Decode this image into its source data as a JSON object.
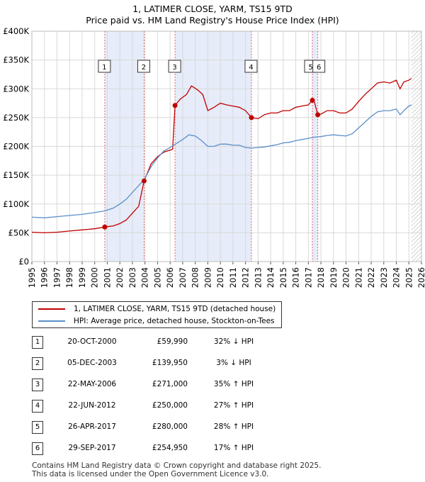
{
  "chart_data": {
    "type": "line",
    "title": "1, LATIMER CLOSE, YARM, TS15 9TD",
    "subtitle": "Price paid vs. HM Land Registry's House Price Index (HPI)",
    "xlim": [
      1995,
      2026
    ],
    "ylim": [
      0,
      400000
    ],
    "y_ticks": [
      {
        "value": 0,
        "label": "£0"
      },
      {
        "value": 50000,
        "label": "£50K"
      },
      {
        "value": 100000,
        "label": "£100K"
      },
      {
        "value": 150000,
        "label": "£150K"
      },
      {
        "value": 200000,
        "label": "£200K"
      },
      {
        "value": 250000,
        "label": "£250K"
      },
      {
        "value": 300000,
        "label": "£300K"
      },
      {
        "value": 350000,
        "label": "£350K"
      },
      {
        "value": 400000,
        "label": "£400K"
      }
    ],
    "x_ticks": [
      "1995",
      "1996",
      "1997",
      "1998",
      "1999",
      "2000",
      "2001",
      "2002",
      "2003",
      "2004",
      "2005",
      "2006",
      "2007",
      "2008",
      "2009",
      "2010",
      "2011",
      "2012",
      "2013",
      "2014",
      "2015",
      "2016",
      "2017",
      "2018",
      "2019",
      "2020",
      "2021",
      "2022",
      "2023",
      "2024",
      "2025",
      "2026"
    ],
    "data_end": 2025.2,
    "shaded_ranges": [
      [
        2000.8,
        2003.93
      ],
      [
        2006.39,
        2012.47
      ],
      [
        2017.32,
        2017.75
      ]
    ],
    "series": [
      {
        "name": "1, LATIMER CLOSE, YARM, TS15 9TD (detached house)",
        "color": "#c00000",
        "points": [
          [
            1995,
            51000
          ],
          [
            1996,
            50000
          ],
          [
            1997,
            51000
          ],
          [
            1998,
            53000
          ],
          [
            1999,
            55000
          ],
          [
            2000,
            57000
          ],
          [
            2000.8,
            59990
          ],
          [
            2001.5,
            62000
          ],
          [
            2002,
            66000
          ],
          [
            2002.5,
            72000
          ],
          [
            2003,
            84000
          ],
          [
            2003.5,
            96000
          ],
          [
            2003.93,
            139950
          ],
          [
            2004.5,
            170000
          ],
          [
            2005,
            182000
          ],
          [
            2005.5,
            190000
          ],
          [
            2006.2,
            195000
          ],
          [
            2006.39,
            271000
          ],
          [
            2006.8,
            282000
          ],
          [
            2007.3,
            290000
          ],
          [
            2007.7,
            305000
          ],
          [
            2008.2,
            298000
          ],
          [
            2008.6,
            290000
          ],
          [
            2009,
            262000
          ],
          [
            2009.5,
            268000
          ],
          [
            2010,
            275000
          ],
          [
            2010.5,
            272000
          ],
          [
            2011,
            270000
          ],
          [
            2011.5,
            268000
          ],
          [
            2012,
            262000
          ],
          [
            2012.47,
            250000
          ],
          [
            2013,
            248000
          ],
          [
            2013.5,
            255000
          ],
          [
            2014,
            258000
          ],
          [
            2014.5,
            258000
          ],
          [
            2015,
            262000
          ],
          [
            2015.5,
            262000
          ],
          [
            2016,
            268000
          ],
          [
            2016.5,
            270000
          ],
          [
            2017,
            272000
          ],
          [
            2017.32,
            280000
          ],
          [
            2017.5,
            276000
          ],
          [
            2017.75,
            254950
          ],
          [
            2018,
            256000
          ],
          [
            2018.5,
            262000
          ],
          [
            2019,
            262000
          ],
          [
            2019.5,
            258000
          ],
          [
            2020,
            258000
          ],
          [
            2020.5,
            265000
          ],
          [
            2021,
            278000
          ],
          [
            2021.5,
            290000
          ],
          [
            2022,
            300000
          ],
          [
            2022.5,
            310000
          ],
          [
            2023,
            312000
          ],
          [
            2023.5,
            310000
          ],
          [
            2024,
            315000
          ],
          [
            2024.3,
            300000
          ],
          [
            2024.6,
            312000
          ],
          [
            2025,
            315000
          ],
          [
            2025.2,
            318000
          ]
        ]
      },
      {
        "name": "HPI: Average price, detached house, Stockton-on-Tees",
        "color": "#5b8fc9",
        "points": [
          [
            1995,
            77000
          ],
          [
            1996,
            76000
          ],
          [
            1997,
            78000
          ],
          [
            1998,
            80000
          ],
          [
            1999,
            82000
          ],
          [
            2000,
            85000
          ],
          [
            2000.8,
            88000
          ],
          [
            2001.5,
            93000
          ],
          [
            2002,
            100000
          ],
          [
            2002.5,
            108000
          ],
          [
            2003,
            120000
          ],
          [
            2003.5,
            132000
          ],
          [
            2003.93,
            142000
          ],
          [
            2004.5,
            165000
          ],
          [
            2005,
            180000
          ],
          [
            2005.5,
            192000
          ],
          [
            2006,
            198000
          ],
          [
            2006.5,
            205000
          ],
          [
            2007,
            212000
          ],
          [
            2007.5,
            220000
          ],
          [
            2008,
            218000
          ],
          [
            2008.5,
            210000
          ],
          [
            2009,
            200000
          ],
          [
            2009.5,
            200000
          ],
          [
            2010,
            204000
          ],
          [
            2010.5,
            204000
          ],
          [
            2011,
            202000
          ],
          [
            2011.5,
            202000
          ],
          [
            2012,
            198000
          ],
          [
            2012.5,
            197000
          ],
          [
            2013,
            198000
          ],
          [
            2013.5,
            199000
          ],
          [
            2014,
            201000
          ],
          [
            2014.5,
            203000
          ],
          [
            2015,
            206000
          ],
          [
            2015.5,
            207000
          ],
          [
            2016,
            210000
          ],
          [
            2016.5,
            212000
          ],
          [
            2017,
            214000
          ],
          [
            2017.5,
            216000
          ],
          [
            2018,
            217000
          ],
          [
            2018.5,
            219000
          ],
          [
            2019,
            220000
          ],
          [
            2019.5,
            219000
          ],
          [
            2020,
            218000
          ],
          [
            2020.5,
            222000
          ],
          [
            2021,
            232000
          ],
          [
            2021.5,
            242000
          ],
          [
            2022,
            252000
          ],
          [
            2022.5,
            260000
          ],
          [
            2023,
            262000
          ],
          [
            2023.5,
            262000
          ],
          [
            2024,
            265000
          ],
          [
            2024.3,
            255000
          ],
          [
            2024.6,
            262000
          ],
          [
            2025,
            270000
          ],
          [
            2025.2,
            272000
          ]
        ]
      }
    ],
    "sales": [
      {
        "label": "1",
        "x": 2000.8,
        "y": 59990
      },
      {
        "label": "2",
        "x": 2003.93,
        "y": 139950
      },
      {
        "label": "3",
        "x": 2006.39,
        "y": 271000
      },
      {
        "label": "4",
        "x": 2012.47,
        "y": 250000
      },
      {
        "label": "5",
        "x": 2017.32,
        "y": 280000
      },
      {
        "label": "6",
        "x": 2017.75,
        "y": 254950
      }
    ]
  },
  "legend": {
    "property": "1, LATIMER CLOSE, YARM, TS15 9TD (detached house)",
    "hpi": "HPI: Average price, detached house, Stockton-on-Tees",
    "property_color": "#c00000",
    "hpi_color": "#5b8fc9"
  },
  "transactions": [
    {
      "num": "1",
      "date": "20-OCT-2000",
      "price": "£59,990",
      "hpi": "32% ↓ HPI"
    },
    {
      "num": "2",
      "date": "05-DEC-2003",
      "price": "£139,950",
      "hpi": "3% ↓ HPI"
    },
    {
      "num": "3",
      "date": "22-MAY-2006",
      "price": "£271,000",
      "hpi": "35% ↑ HPI"
    },
    {
      "num": "4",
      "date": "22-JUN-2012",
      "price": "£250,000",
      "hpi": "27% ↑ HPI"
    },
    {
      "num": "5",
      "date": "26-APR-2017",
      "price": "£280,000",
      "hpi": "28% ↑ HPI"
    },
    {
      "num": "6",
      "date": "29-SEP-2017",
      "price": "£254,950",
      "hpi": "17% ↑ HPI"
    }
  ],
  "footer": {
    "line1": "Contains HM Land Registry data © Crown copyright and database right 2025.",
    "line2": "This data is licensed under the Open Government Licence v3.0."
  }
}
